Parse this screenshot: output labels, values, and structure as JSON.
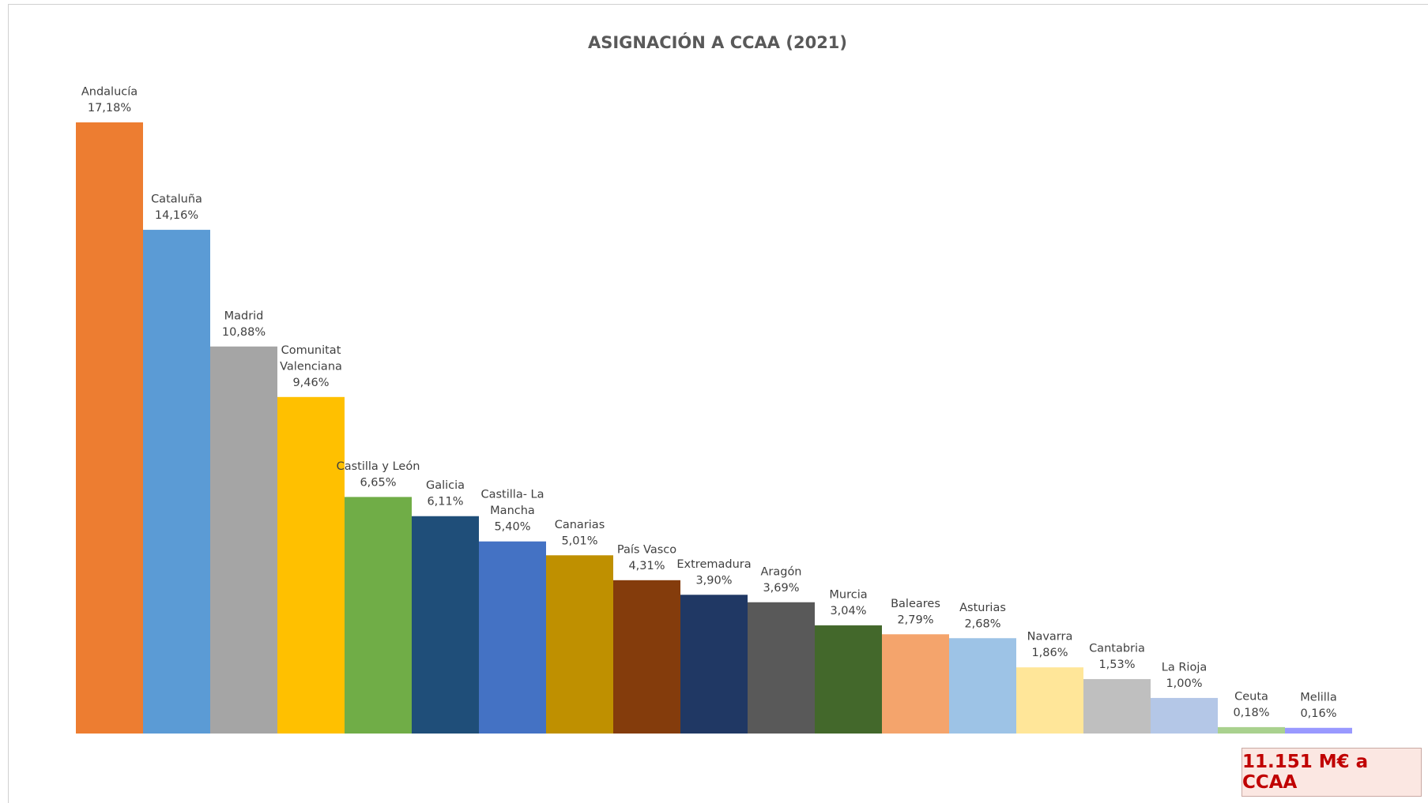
{
  "chart_data": {
    "type": "bar",
    "title": "ASIGNACIÓN A CCAA (2021)",
    "xlabel": "",
    "ylabel": "",
    "ylim": [
      0,
      17.18
    ],
    "grid": false,
    "legend": "none",
    "categories": [
      "Andalucía",
      "Cataluña",
      "Madrid",
      "Comunitat Valenciana",
      "Castilla y León",
      "Galicia",
      "Castilla- La Mancha",
      "Canarias",
      "País Vasco",
      "Extremadura",
      "Aragón",
      "Murcia",
      "Baleares",
      "Asturias",
      "Navarra",
      "Cantabria",
      "La Rioja",
      "Ceuta",
      "Melilla"
    ],
    "label_lines": [
      [
        "Andalucía"
      ],
      [
        "Cataluña"
      ],
      [
        "Madrid"
      ],
      [
        "Comunitat",
        "Valenciana"
      ],
      [
        "Castilla y León"
      ],
      [
        "Galicia"
      ],
      [
        "Castilla- La",
        "Mancha"
      ],
      [
        "Canarias"
      ],
      [
        "País Vasco"
      ],
      [
        "Extremadura"
      ],
      [
        "Aragón"
      ],
      [
        "Murcia"
      ],
      [
        "Baleares"
      ],
      [
        "Asturias"
      ],
      [
        "Navarra"
      ],
      [
        "Cantabria"
      ],
      [
        "La Rioja"
      ],
      [
        "Ceuta"
      ],
      [
        "Melilla"
      ]
    ],
    "values": [
      17.18,
      14.16,
      10.88,
      9.46,
      6.65,
      6.11,
      5.4,
      5.01,
      4.31,
      3.9,
      3.69,
      3.04,
      2.79,
      2.68,
      1.86,
      1.53,
      1.0,
      0.18,
      0.16
    ],
    "value_labels": [
      "17,18%",
      "14,16%",
      "10,88%",
      "9,46%",
      "6,65%",
      "6,11%",
      "5,40%",
      "5,01%",
      "4,31%",
      "3,90%",
      "3,69%",
      "3,04%",
      "2,79%",
      "2,68%",
      "1,86%",
      "1,53%",
      "1,00%",
      "0,18%",
      "0,16%"
    ],
    "colors": [
      "#ed7d31",
      "#5b9bd5",
      "#a5a5a5",
      "#ffc000",
      "#70ad47",
      "#1f4e79",
      "#4472c4",
      "#bf9000",
      "#843c0c",
      "#203864",
      "#595959",
      "#43682b",
      "#f4a46c",
      "#9dc3e6",
      "#ffe699",
      "#bfbfbf",
      "#b4c7e7",
      "#a9d18e",
      "#9999ff"
    ]
  },
  "total_box": {
    "text": "11.151 M€ a CCAA",
    "background": "#fbe7e2",
    "text_color": "#c00000"
  }
}
